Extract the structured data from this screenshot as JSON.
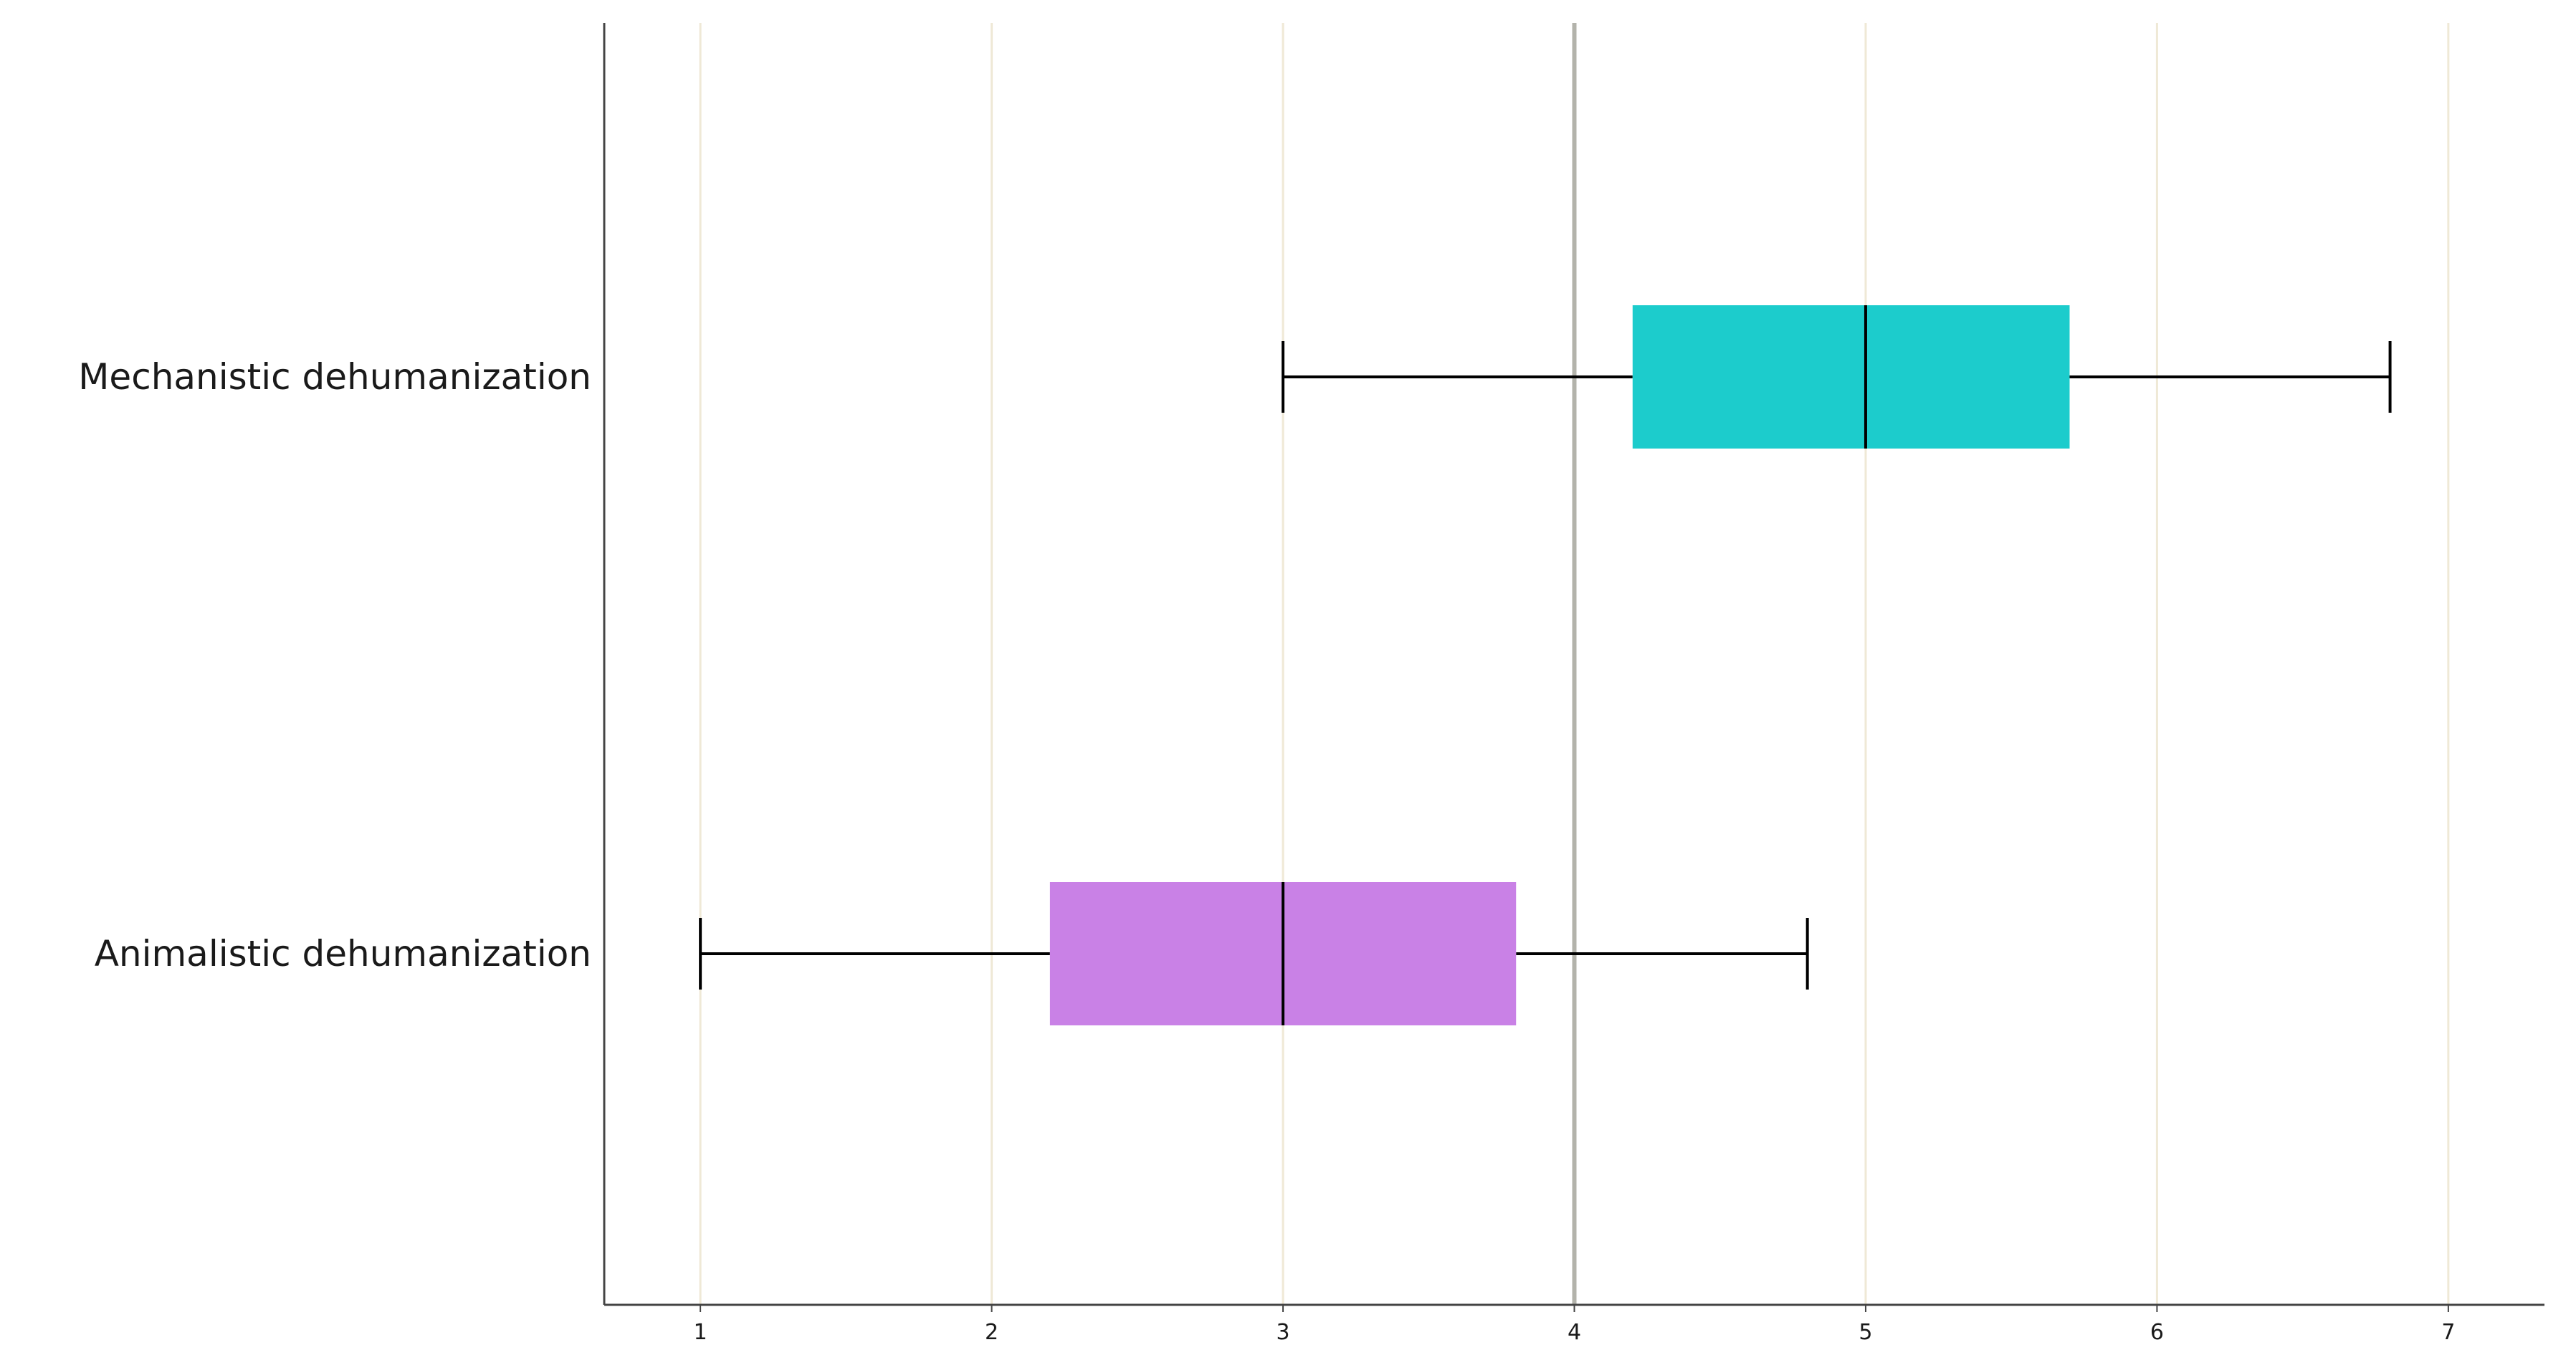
{
  "chart_data": {
    "type": "boxplot",
    "orientation": "horizontal",
    "title": "",
    "xlabel": "",
    "ylabel": "",
    "xlim": [
      0.67,
      7.33
    ],
    "x_ticks": [
      "1",
      "2",
      "3",
      "4",
      "5",
      "6",
      "7"
    ],
    "grid": true,
    "reference_line": 4,
    "categories": [
      "Mechanistic dehumanization",
      "Animalistic dehumanization"
    ],
    "boxes": [
      {
        "category": "Mechanistic dehumanization",
        "whisker_low": 3.0,
        "q1": 4.2,
        "median": 5.0,
        "q3": 5.7,
        "whisker_high": 6.8,
        "color": "#1ccccc"
      },
      {
        "category": "Animalistic dehumanization",
        "whisker_low": 1.0,
        "q1": 2.2,
        "median": 3.0,
        "q3": 3.8,
        "whisker_high": 4.8,
        "color": "#c981e6"
      }
    ],
    "colors": {
      "gridline": "#efe9d6",
      "reference_line": "#b3b3ab",
      "axis": "#444444",
      "whisker": "#000000"
    }
  }
}
